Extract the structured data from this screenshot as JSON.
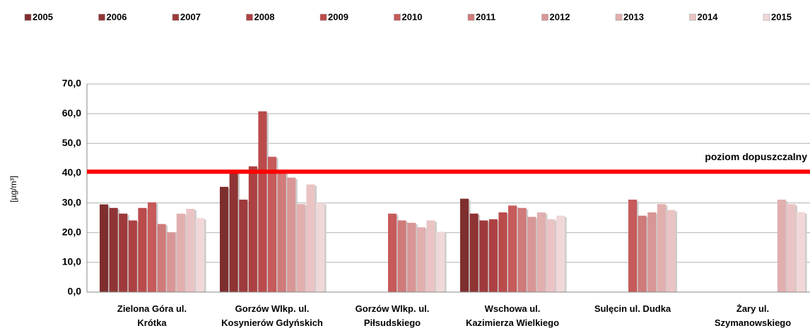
{
  "chart_data": {
    "type": "bar",
    "y_label": "[µg/m³]",
    "categories": [
      "Zielona Góra  ul.\nKrótka",
      "Gorzów Wlkp.  ul.\nKosynierów Gdyńskich",
      "Gorzów Wlkp.  ul.\nPiłsudskiego",
      "Wschowa ul.\nKazimierza Wielkiego",
      "Sulęcin  ul. Dudka",
      "Żary   ul.\nSzymanowskiego"
    ],
    "series": [
      {
        "name": "2005",
        "color": "#7f2e2e",
        "values": [
          29.5,
          35.4,
          null,
          31.4,
          null,
          null
        ]
      },
      {
        "name": "2006",
        "color": "#8f3434",
        "values": [
          28.3,
          40.7,
          null,
          26.4,
          null,
          null
        ]
      },
      {
        "name": "2007",
        "color": "#9e3a3b",
        "values": [
          26.4,
          31.1,
          null,
          24.1,
          null,
          null
        ]
      },
      {
        "name": "2008",
        "color": "#ad4142",
        "values": [
          24.1,
          42.3,
          null,
          24.5,
          null,
          null
        ]
      },
      {
        "name": "2009",
        "color": "#bb4a4b",
        "values": [
          28.3,
          60.8,
          null,
          26.8,
          null,
          null
        ]
      },
      {
        "name": "2010",
        "color": "#c75a5a",
        "values": [
          30.2,
          45.5,
          26.4,
          29.1,
          31.1,
          null
        ]
      },
      {
        "name": "2011",
        "color": "#d07a7a",
        "values": [
          22.9,
          40.5,
          24.1,
          28.3,
          25.7,
          null
        ]
      },
      {
        "name": "2012",
        "color": "#d99696",
        "values": [
          20.1,
          38.5,
          23.3,
          25.3,
          26.8,
          null
        ]
      },
      {
        "name": "2013",
        "color": "#e2afaf",
        "values": [
          26.4,
          29.6,
          21.8,
          26.8,
          29.6,
          31.1
        ]
      },
      {
        "name": "2014",
        "color": "#eac4c4",
        "values": [
          28.0,
          36.2,
          24.1,
          24.5,
          27.6,
          29.6
        ]
      },
      {
        "name": "2015",
        "color": "#f1d8d8",
        "values": [
          24.9,
          30.0,
          20.3,
          25.7,
          null,
          26.9
        ]
      }
    ],
    "ylim": [
      0,
      70
    ],
    "yticks": [
      {
        "value": 0,
        "label": "0,0"
      },
      {
        "value": 10,
        "label": "10,0"
      },
      {
        "value": 20,
        "label": "20,0"
      },
      {
        "value": 30,
        "label": "30,0"
      },
      {
        "value": 40,
        "label": "40,0"
      },
      {
        "value": 50,
        "label": "50,0"
      },
      {
        "value": 60,
        "label": "60,0"
      },
      {
        "value": 70,
        "label": "70,0"
      }
    ],
    "grid": true,
    "threshold": {
      "value": 40.5,
      "label": "poziom dopuszczalny",
      "color": "#ff0000"
    },
    "legend": "top"
  }
}
